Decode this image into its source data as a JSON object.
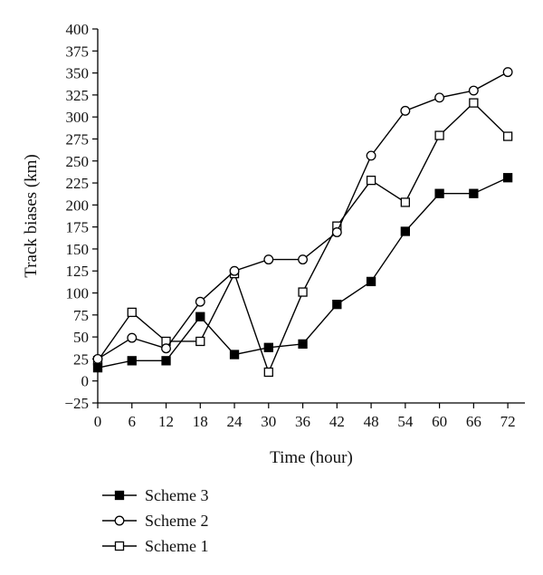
{
  "chart_data": {
    "type": "line",
    "title": "",
    "xlabel": "Time (hour)",
    "ylabel": "Track biases (km)",
    "x": [
      0,
      6,
      12,
      18,
      24,
      30,
      36,
      42,
      48,
      54,
      60,
      66,
      72
    ],
    "xlim": [
      0,
      75
    ],
    "ylim": [
      -25,
      400
    ],
    "xticks": [
      "0",
      "6",
      "12",
      "18",
      "24",
      "30",
      "36",
      "42",
      "48",
      "54",
      "60",
      "66",
      "72"
    ],
    "yticks": [
      "400",
      "375",
      "350",
      "325",
      "300",
      "275",
      "250",
      "225",
      "200",
      "175",
      "150",
      "125",
      "100",
      "75",
      "50",
      "25",
      "0",
      "−25"
    ],
    "grid": false,
    "legend_position": "bottom-left",
    "series": [
      {
        "name": "Scheme 3",
        "marker": "filled-square",
        "color": "#000000",
        "values": [
          15,
          23,
          23,
          73,
          30,
          38,
          42,
          87,
          113,
          170,
          213,
          213,
          231
        ]
      },
      {
        "name": "Scheme 2",
        "marker": "open-circle",
        "color": "#000000",
        "values": [
          25,
          49,
          37,
          90,
          125,
          138,
          138,
          169,
          256,
          307,
          322,
          330,
          351
        ]
      },
      {
        "name": "Scheme 1",
        "marker": "open-square",
        "color": "#000000",
        "values": [
          23,
          78,
          45,
          45,
          122,
          10,
          101,
          176,
          228,
          203,
          279,
          316,
          278
        ]
      }
    ]
  }
}
